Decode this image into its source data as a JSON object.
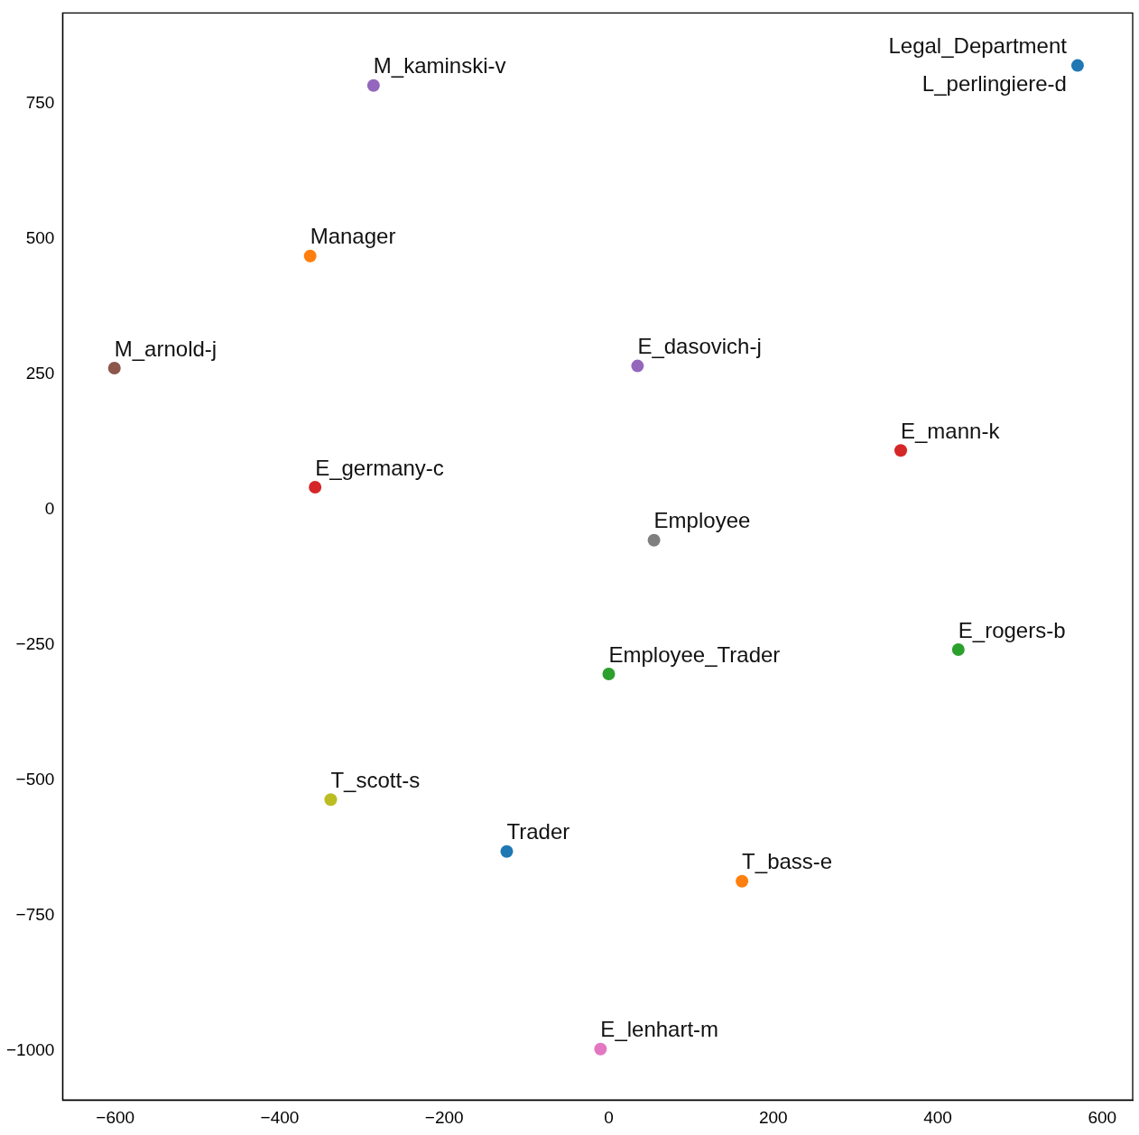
{
  "chart_data": {
    "type": "scatter",
    "marker": "circle",
    "grid": false,
    "legend": false,
    "x": [
      570,
      null,
      -286,
      -363,
      -601,
      35,
      355,
      -357,
      55,
      425,
      0,
      -338,
      -124,
      162,
      -10
    ],
    "values": [
      820,
      null,
      783,
      468,
      261,
      265,
      109,
      41,
      -57,
      -259,
      -304,
      -536,
      -632,
      -687,
      -997
    ],
    "colors": [
      "#1f77b4",
      "#1f77b4",
      "#9467bd",
      "#ff7f0e",
      "#8c564b",
      "#9467bd",
      "#d62728",
      "#d62728",
      "#7f7f7f",
      "#2ca02c",
      "#2ca02c",
      "#bcbd22",
      "#1f77b4",
      "#ff7f0e",
      "#e377c2"
    ],
    "annotations": [
      {
        "text": "Legal_Department",
        "x": 570,
        "y": 820
      },
      {
        "text": "L_perlingiere-d",
        "x": 570,
        "y": 820
      },
      {
        "text": "M_kaminski-v",
        "x": -286,
        "y": 783
      },
      {
        "text": "Manager",
        "x": -363,
        "y": 468
      },
      {
        "text": "M_arnold-j",
        "x": -601,
        "y": 261
      },
      {
        "text": "E_dasovich-j",
        "x": 35,
        "y": 265
      },
      {
        "text": "E_mann-k",
        "x": 355,
        "y": 109
      },
      {
        "text": "E_germany-c",
        "x": -357,
        "y": 41
      },
      {
        "text": "Employee",
        "x": 55,
        "y": -57
      },
      {
        "text": "E_rogers-b",
        "x": 425,
        "y": -259
      },
      {
        "text": "Employee_Trader",
        "x": 0,
        "y": -304
      },
      {
        "text": "T_scott-s",
        "x": -338,
        "y": -536
      },
      {
        "text": "Trader",
        "x": -124,
        "y": -632
      },
      {
        "text": "T_bass-e",
        "x": 162,
        "y": -687
      },
      {
        "text": "E_lenhart-m",
        "x": -10,
        "y": -997
      }
    ],
    "xlim": [
      -664,
      637
    ],
    "ylim": [
      -1091,
      917
    ],
    "xticks": [
      {
        "value": -600,
        "label": "−600"
      },
      {
        "value": -400,
        "label": "−400"
      },
      {
        "value": -200,
        "label": "−200"
      },
      0,
      200,
      400,
      600
    ],
    "yticks": [
      {
        "value": -1000,
        "label": "−1000"
      },
      {
        "value": -750,
        "label": "−750"
      },
      {
        "value": -500,
        "label": "−500"
      },
      {
        "value": -250,
        "label": "−250"
      },
      0,
      250,
      500,
      750
    ]
  }
}
